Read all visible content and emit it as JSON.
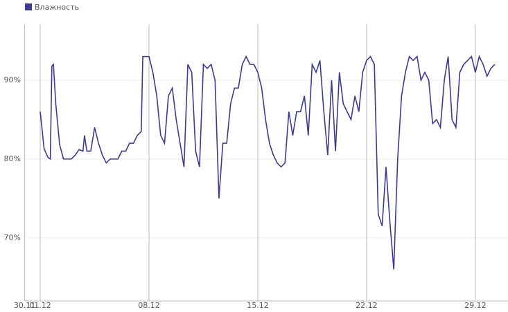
{
  "chart_data": {
    "type": "line",
    "x": [
      1.0,
      1.25,
      1.5,
      1.65,
      1.75,
      1.85,
      2.0,
      2.25,
      2.5,
      2.75,
      3.0,
      3.25,
      3.5,
      3.75,
      3.85,
      4.0,
      4.25,
      4.5,
      4.75,
      5.0,
      5.25,
      5.5,
      5.75,
      6.0,
      6.25,
      6.5,
      6.75,
      7.0,
      7.25,
      7.5,
      7.6,
      8.0,
      8.25,
      8.5,
      8.75,
      9.0,
      9.25,
      9.5,
      9.75,
      10.0,
      10.25,
      10.5,
      10.75,
      11.0,
      11.25,
      11.5,
      11.75,
      12.0,
      12.25,
      12.5,
      12.75,
      13.0,
      13.25,
      13.5,
      13.75,
      14.0,
      14.25,
      14.5,
      14.75,
      15.0,
      15.25,
      15.5,
      15.75,
      16.0,
      16.25,
      16.5,
      16.75,
      17.0,
      17.25,
      17.5,
      17.75,
      18.0,
      18.25,
      18.5,
      18.75,
      19.0,
      19.25,
      19.5,
      19.75,
      20.0,
      20.25,
      20.5,
      20.75,
      21.0,
      21.25,
      21.5,
      21.75,
      22.0,
      22.25,
      22.5,
      22.75,
      23.0,
      23.25,
      23.5,
      23.75,
      24.0,
      24.25,
      24.5,
      24.75,
      25.0,
      25.25,
      25.5,
      25.75,
      26.0,
      26.25,
      26.5,
      26.75,
      27.0,
      27.25,
      27.5,
      27.75,
      28.0,
      28.25,
      28.5,
      28.75,
      29.0,
      29.25,
      29.5,
      29.75,
      30.0,
      30.25
    ],
    "series": [
      {
        "name": "Влажность",
        "color": "#3a3a96",
        "values": [
          86,
          81.3,
          80.2,
          80,
          91.8,
          92,
          87,
          81.8,
          80,
          80,
          80,
          80.5,
          81.2,
          81,
          83,
          81,
          81,
          84,
          82,
          80.5,
          79.5,
          80,
          80,
          80,
          81,
          81,
          82,
          82,
          83,
          83.5,
          93,
          93,
          91,
          88,
          83,
          82,
          88,
          89,
          85,
          82,
          79,
          92,
          91,
          81,
          79,
          92,
          91.5,
          92,
          90,
          75,
          82,
          82,
          87,
          89,
          89,
          92,
          93,
          92,
          92,
          91,
          89,
          85,
          82,
          80.5,
          79.5,
          79,
          79.5,
          86,
          83,
          86,
          86,
          88,
          83,
          92,
          91,
          92.5,
          86,
          80.5,
          90,
          81,
          91,
          87,
          86,
          85,
          88,
          86,
          91,
          92.5,
          93,
          92,
          73,
          71.5,
          79,
          72,
          66,
          80,
          88,
          91,
          93,
          92.5,
          93,
          90,
          91,
          90,
          84.5,
          85,
          84,
          90,
          93,
          85,
          84,
          91,
          92,
          92.5,
          93,
          91,
          93,
          92,
          90.5,
          91.5,
          92
        ]
      }
    ],
    "xlim": [
      0,
      31.1
    ],
    "xticks": [
      {
        "value": 0,
        "label": "30.11"
      },
      {
        "value": 1,
        "label": "01.12"
      },
      {
        "value": 8,
        "label": "08.12"
      },
      {
        "value": 15,
        "label": "15.12"
      },
      {
        "value": 22,
        "label": "22.12"
      },
      {
        "value": 29,
        "label": "29.12"
      }
    ],
    "ylim": [
      62,
      97.1
    ],
    "yticks": [
      {
        "value": 70,
        "label": "70%"
      },
      {
        "value": 80,
        "label": "80%"
      },
      {
        "value": 90,
        "label": "90%"
      }
    ],
    "grid": true
  }
}
